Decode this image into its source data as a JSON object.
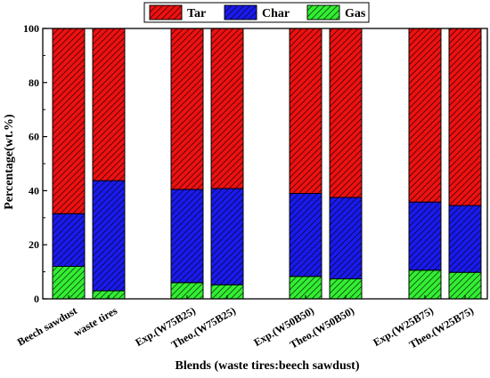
{
  "chart_data": {
    "type": "bar",
    "stacked": true,
    "categories": [
      "Beech sawdust",
      "waste tires",
      "Exp.(W75B25)",
      "Theo.(W75B25)",
      "Exp.(W50B50)",
      "Theo.(W50B50)",
      "Exp.(W25B75)",
      "Theo.(W25B75)"
    ],
    "series": [
      {
        "name": "Gas",
        "color": "#33ee33",
        "values": [
          12.0,
          3.0,
          6.0,
          5.2,
          8.3,
          7.4,
          10.6,
          9.8
        ]
      },
      {
        "name": "Char",
        "color": "#1a1aee",
        "values": [
          19.5,
          40.7,
          34.5,
          35.6,
          30.7,
          30.1,
          25.2,
          24.7
        ]
      },
      {
        "name": "Tar",
        "color": "#ee1111",
        "values": [
          68.5,
          56.3,
          59.5,
          59.2,
          61.0,
          62.5,
          64.2,
          65.5
        ]
      }
    ],
    "legend_order": [
      "Tar",
      "Char",
      "Gas"
    ],
    "legend_position": "top",
    "xlabel": "Blends (waste tires:beech sawdust)",
    "ylabel": "Percentage(wt.%)",
    "ylim": [
      0,
      100
    ],
    "yticks": [
      0,
      20,
      40,
      60,
      80,
      100
    ],
    "grid": false,
    "hatch": "diagonal"
  }
}
